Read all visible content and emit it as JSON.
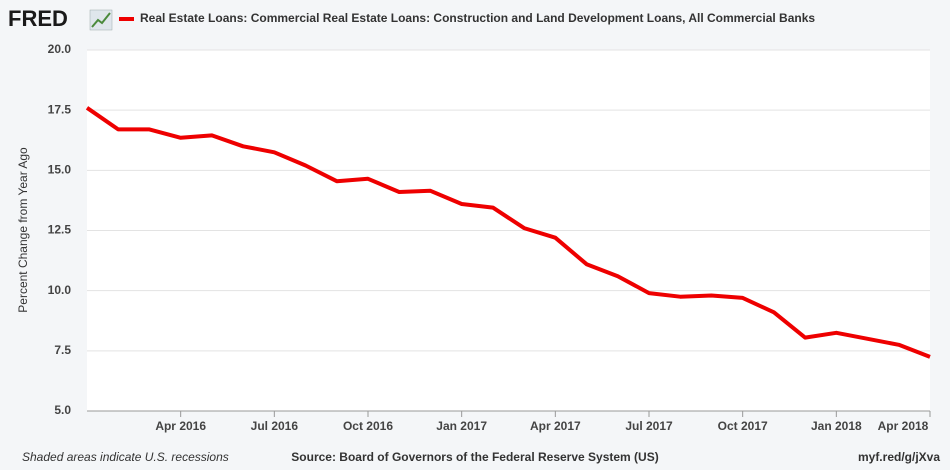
{
  "chart_data": {
    "type": "line",
    "logo": "FRED",
    "ylabel": "Percent Change from Year Ago",
    "footer_left": "Shaded areas indicate U.S. recessions",
    "source": "Source: Board of Governors of the Federal Reserve System (US)",
    "link": "myf.red/g/jXva",
    "x": [
      "2016-01",
      "2016-02",
      "2016-03",
      "2016-04",
      "2016-05",
      "2016-06",
      "2016-07",
      "2016-08",
      "2016-09",
      "2016-10",
      "2016-11",
      "2016-12",
      "2017-01",
      "2017-02",
      "2017-03",
      "2017-04",
      "2017-05",
      "2017-06",
      "2017-07",
      "2017-08",
      "2017-09",
      "2017-10",
      "2017-11",
      "2017-12",
      "2018-01",
      "2018-02",
      "2018-03",
      "2018-04"
    ],
    "series": [
      {
        "name": "Real Estate Loans: Commercial Real Estate Loans: Construction and Land Development Loans, All Commercial Banks",
        "color": "#ee0000",
        "values": [
          17.6,
          16.7,
          16.7,
          16.35,
          16.45,
          16.0,
          15.75,
          15.2,
          14.55,
          14.65,
          14.1,
          14.15,
          13.6,
          13.45,
          12.6,
          12.2,
          11.1,
          10.6,
          9.9,
          9.75,
          9.8,
          9.7,
          9.1,
          8.05,
          8.25,
          8.0,
          7.75,
          7.25
        ]
      }
    ],
    "xlim": [
      "2016-01",
      "2018-04"
    ],
    "xticks": [
      {
        "value": "2016-04",
        "label": "Apr 2016"
      },
      {
        "value": "2016-07",
        "label": "Jul 2016"
      },
      {
        "value": "2016-10",
        "label": "Oct 2016"
      },
      {
        "value": "2017-01",
        "label": "Jan 2017"
      },
      {
        "value": "2017-04",
        "label": "Apr 2017"
      },
      {
        "value": "2017-07",
        "label": "Jul 2017"
      },
      {
        "value": "2017-10",
        "label": "Oct 2017"
      },
      {
        "value": "2018-01",
        "label": "Jan 2018"
      },
      {
        "value": "2018-04",
        "label": "Apr 2018"
      }
    ],
    "ylim": [
      5,
      20
    ],
    "yticks": [
      {
        "value": 5,
        "label": "5.0"
      },
      7.5,
      {
        "value": 10,
        "label": "10.0"
      },
      12.5,
      {
        "value": 15,
        "label": "15.0"
      },
      17.5,
      {
        "value": 20,
        "label": "20.0"
      }
    ],
    "grid": true
  }
}
